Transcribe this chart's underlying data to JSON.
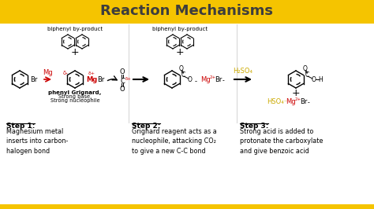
{
  "title": "Reaction Mechanisms",
  "title_bg_color": "#F5C400",
  "title_text_color": "#3d3d3d",
  "bg_color": "#ffffff",
  "step1_header": "Step 1:",
  "step1_text": "Magnesium metal\ninserts into carbon-\nhalogen bond",
  "step2_header": "Step 2:",
  "step2_text": "Grignard reagent acts as a\nnucleophile, attacking CO₂\nto give a new C-C bond",
  "step3_header": "Step 3:",
  "step3_text": "Strong acid is added to\nprotonate the carboxylate\nand give benzoic acid",
  "step_header_color": "#000000",
  "step_text_color": "#000000",
  "mg_color": "#cc0000",
  "delta_color": "#cc0000",
  "h2so4_color": "#ccaa00",
  "black": "#000000",
  "yellow": "#F5C400",
  "gray": "#888888"
}
